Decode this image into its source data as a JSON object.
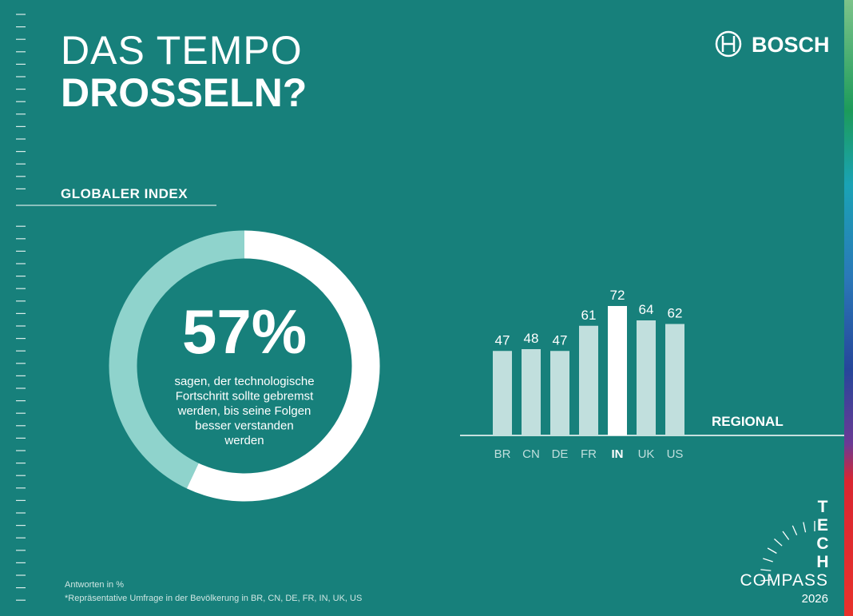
{
  "header": {
    "title_light": "DAS TEMPO",
    "title_bold": "DROSSELN?",
    "logo": "BOSCH"
  },
  "chart_data": [
    {
      "type": "donut",
      "title": "GLOBALER INDEX",
      "values": [
        57
      ],
      "value_labels": [
        "57%"
      ],
      "color": "#ffffff",
      "rest_color": "#8fd3cc",
      "annotation_lines": [
        "sagen, der technologische",
        "Fortschritt sollte gebremst",
        "werden, bis seine Folgen",
        "besser verstanden",
        "werden"
      ]
    },
    {
      "type": "bar",
      "title": "REGIONAL",
      "categories": [
        "BR",
        "CN",
        "DE",
        "FR",
        "IN",
        "UK",
        "US"
      ],
      "values": [
        47,
        48,
        47,
        61,
        72,
        64,
        62
      ],
      "colors": [
        "#c1dfdd",
        "#c1dfdd",
        "#c1dfdd",
        "#c1dfdd",
        "#ffffff",
        "#c1dfdd",
        "#c1dfdd"
      ]
    }
  ],
  "footer": {
    "note": "Antworten in %",
    "source": "*Repräsentative Umfrage in der Bevölkerung in BR, CN, DE, FR, IN, UK, US"
  },
  "brand": {
    "letters": [
      "T",
      "E",
      "C",
      "H"
    ],
    "name": "COMPASS",
    "year": "2026"
  }
}
